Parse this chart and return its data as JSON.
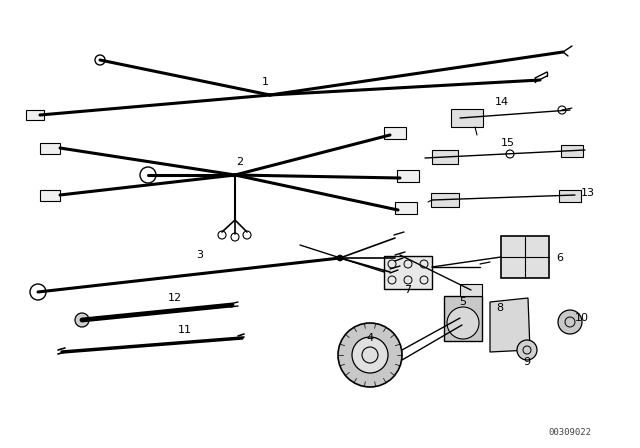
{
  "background_color": "#ffffff",
  "line_color": "#000000",
  "text_color": "#000000",
  "watermark": "00309022",
  "fig_width": 6.4,
  "fig_height": 4.48,
  "dpi": 100
}
